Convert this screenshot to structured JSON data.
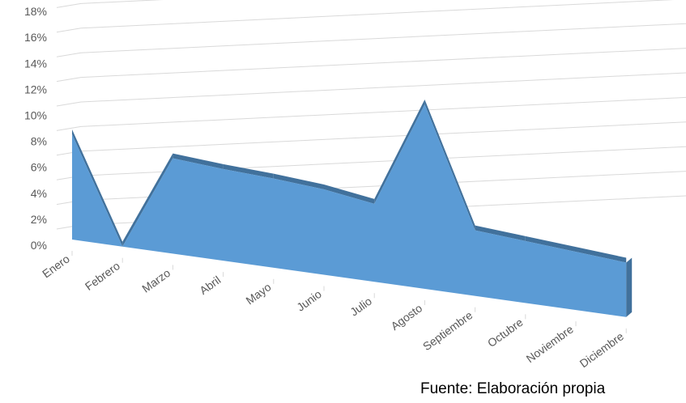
{
  "chart_data": {
    "type": "area",
    "categories": [
      "Enero",
      "Febrero",
      "Marzo",
      "Abril",
      "Mayo",
      "Junio",
      "Julio",
      "Agosto",
      "Septiembre",
      "Octubre",
      "Noviembre",
      "Diciembre"
    ],
    "values": [
      8.5,
      0,
      7.7,
      7.4,
      7.2,
      6.9,
      6.3,
      14.9,
      5.3,
      5.0,
      4.7,
      4.4
    ],
    "y_tick_labels": [
      "0%",
      "2%",
      "4%",
      "6%",
      "8%",
      "10%",
      "12%",
      "14%",
      "16%",
      "18%"
    ],
    "ylim": [
      0,
      18
    ],
    "grid": true,
    "style": "3d",
    "colors": {
      "front": "#5b9bd5",
      "top": "#41719c",
      "grid": "#d9d9d9"
    }
  },
  "source_text": "Fuente: Elaboración propia"
}
